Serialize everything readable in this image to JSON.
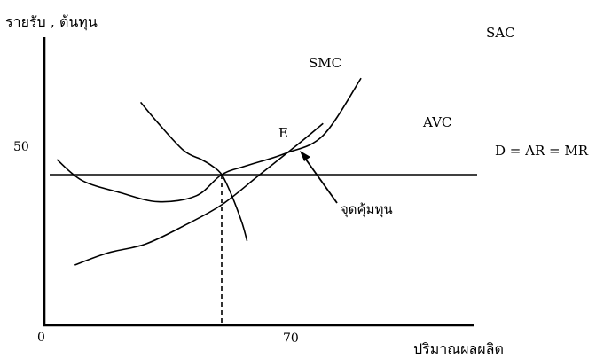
{
  "chart_data": {
    "type": "line",
    "title": "",
    "ylabel": "รายรับ , ต้นทุน",
    "xlabel": "ปริมาณผลผลิต",
    "origin_label": "0",
    "x_tick": {
      "value": 70,
      "label": "70"
    },
    "y_tick": {
      "value": 50,
      "label": "50"
    },
    "point": {
      "label": "E",
      "x": 70,
      "y": 50
    },
    "annotation": "จุดคุ้มทุน",
    "horizontal_line_label": "D = AR = MR",
    "xlim": [
      0,
      140
    ],
    "ylim": [
      0,
      90
    ],
    "series": [
      {
        "name": "SMC",
        "x": [
          38,
          45,
          55,
          62,
          66,
          70,
          74,
          78,
          80
        ],
        "y": [
          74,
          67,
          58,
          55,
          53,
          50,
          43,
          34,
          28
        ]
      },
      {
        "name": "SAC",
        "x": [
          5,
          15,
          30,
          45,
          60,
          70,
          80,
          95,
          110,
          125
        ],
        "y": [
          55,
          48,
          44,
          41,
          43,
          50,
          53,
          57,
          63,
          82
        ]
      },
      {
        "name": "AVC",
        "x": [
          12,
          25,
          40,
          55,
          70,
          85,
          100,
          110
        ],
        "y": [
          20,
          24,
          27,
          33,
          40,
          50,
          60,
          67
        ]
      }
    ]
  }
}
